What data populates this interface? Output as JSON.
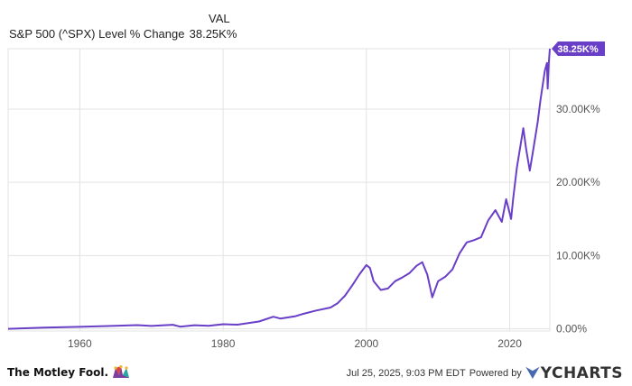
{
  "header": {
    "column_label": "VAL",
    "series_label": "S&P 500 (^SPX) Level % Change",
    "series_value": "38.25K%"
  },
  "footer": {
    "brand": "The Motley Fool.",
    "timestamp": "Jul 25, 2025, 9:03 PM EDT",
    "powered_by": "Powered by",
    "provider": "YCHARTS"
  },
  "colors": {
    "line": "#6a3fc8",
    "grid": "#e3e3e3",
    "axis_text": "#555555",
    "badge_bg": "#6a3fc8",
    "badge_text": "#ffffff"
  },
  "chart_data": {
    "type": "line",
    "title": "",
    "xlabel": "",
    "ylabel": "",
    "xlim": [
      1950,
      2025.6
    ],
    "ylim": [
      -300,
      38250
    ],
    "x_ticks": [
      1960,
      1980,
      2000,
      2020
    ],
    "y_ticks": [
      {
        "value": 0,
        "label": "0.00%"
      },
      {
        "value": 10000,
        "label": "10.00K%"
      },
      {
        "value": 20000,
        "label": "20.00K%"
      },
      {
        "value": 30000,
        "label": "30.00K%"
      }
    ],
    "last_value_label": "38.25K%",
    "grid": true,
    "legend": "none",
    "series": [
      {
        "values": [
          [
            1950,
            0
          ],
          [
            1955,
            170
          ],
          [
            1960,
            270
          ],
          [
            1965,
            400
          ],
          [
            1968,
            500
          ],
          [
            1970,
            390
          ],
          [
            1973,
            550
          ],
          [
            1974,
            290
          ],
          [
            1976,
            490
          ],
          [
            1978,
            420
          ],
          [
            1980,
            620
          ],
          [
            1982,
            560
          ],
          [
            1985,
            990
          ],
          [
            1987,
            1650
          ],
          [
            1988,
            1400
          ],
          [
            1990,
            1700
          ],
          [
            1991,
            1990
          ],
          [
            1993,
            2500
          ],
          [
            1995,
            2900
          ],
          [
            1996,
            3500
          ],
          [
            1997,
            4500
          ],
          [
            1998,
            5900
          ],
          [
            1999,
            7400
          ],
          [
            2000,
            8700
          ],
          [
            2000.5,
            8300
          ],
          [
            2001,
            6500
          ],
          [
            2002,
            5300
          ],
          [
            2003,
            5500
          ],
          [
            2004,
            6500
          ],
          [
            2005,
            7000
          ],
          [
            2006,
            7600
          ],
          [
            2007,
            8600
          ],
          [
            2007.8,
            9100
          ],
          [
            2008.5,
            7400
          ],
          [
            2009.2,
            4300
          ],
          [
            2010,
            6500
          ],
          [
            2011,
            7100
          ],
          [
            2012,
            8100
          ],
          [
            2013,
            10300
          ],
          [
            2014,
            11800
          ],
          [
            2015,
            12100
          ],
          [
            2016,
            12500
          ],
          [
            2017,
            14800
          ],
          [
            2018,
            16200
          ],
          [
            2018.9,
            14600
          ],
          [
            2019.5,
            17700
          ],
          [
            2020.2,
            15000
          ],
          [
            2020.5,
            17900
          ],
          [
            2021,
            22000
          ],
          [
            2021.9,
            27400
          ],
          [
            2022.3,
            24500
          ],
          [
            2022.8,
            21600
          ],
          [
            2023.3,
            24500
          ],
          [
            2023.9,
            28200
          ],
          [
            2024.3,
            31300
          ],
          [
            2024.9,
            35200
          ],
          [
            2025.2,
            36300
          ],
          [
            2025.3,
            32800
          ],
          [
            2025.45,
            36200
          ],
          [
            2025.6,
            38250
          ]
        ]
      }
    ]
  }
}
